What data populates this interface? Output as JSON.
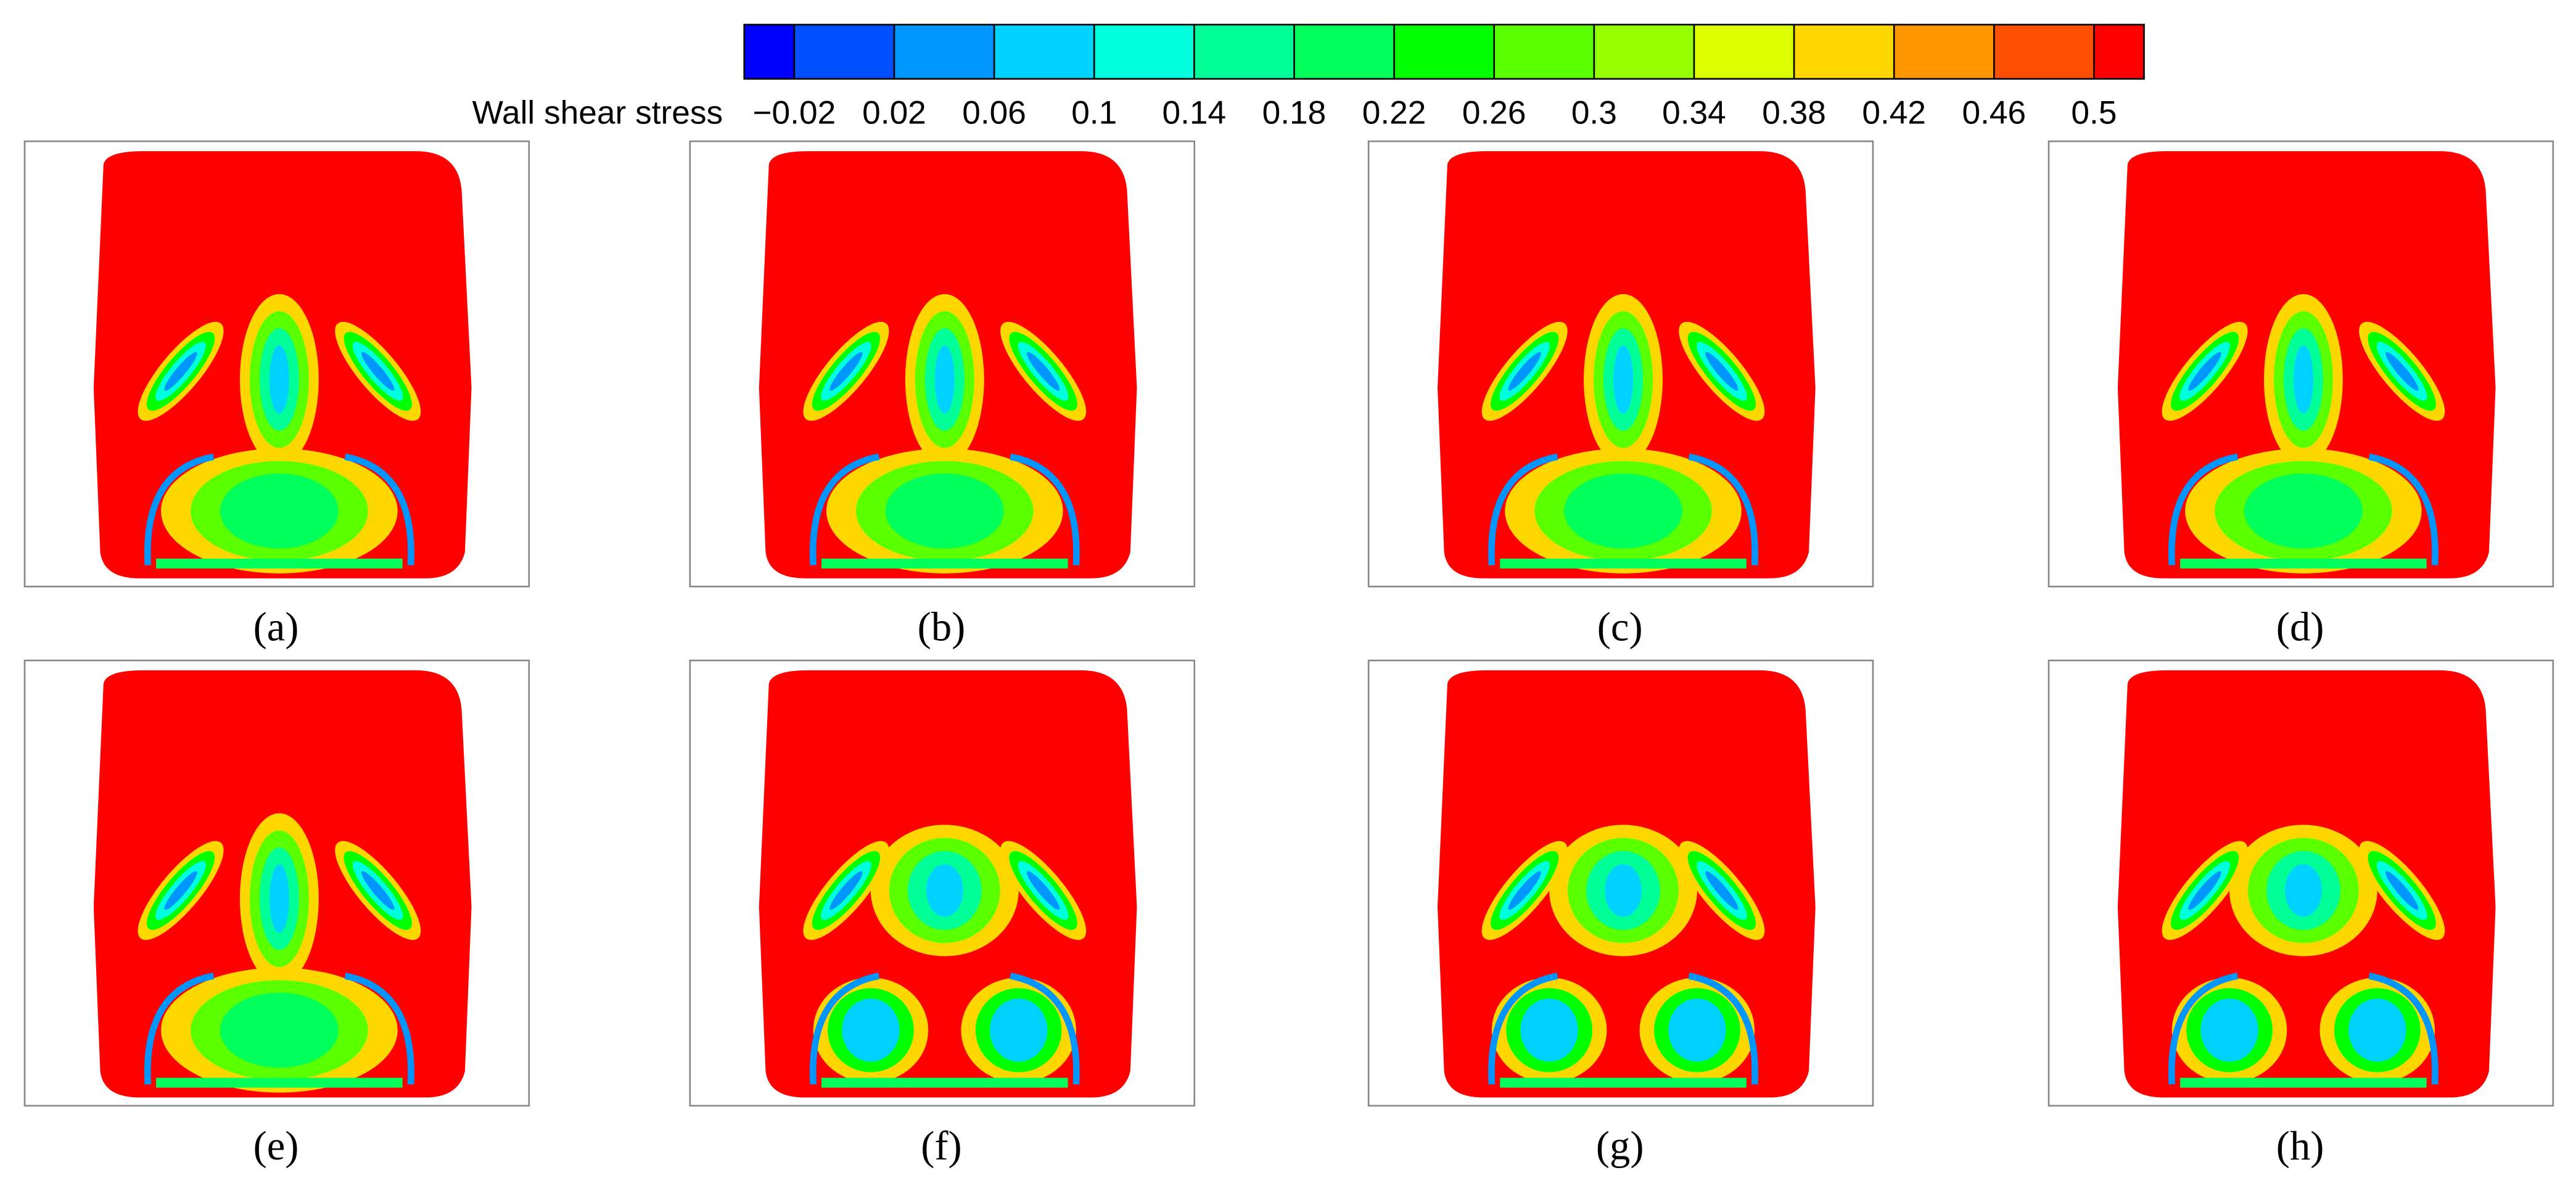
{
  "colorbar": {
    "label": "Wall shear stress",
    "lim": [
      -0.04,
      0.52
    ],
    "ticks": [
      {
        "value": -0.02,
        "label": "−0.02"
      },
      0.02,
      0.06,
      0.1,
      0.14,
      0.18,
      0.22,
      0.26,
      0.3,
      0.34,
      0.38,
      0.42,
      0.46,
      0.5
    ],
    "colors": [
      "#0000ff",
      "#0050ff",
      "#0096ff",
      "#00d2ff",
      "#00ffdc",
      "#00ff96",
      "#00ff5a",
      "#00ff00",
      "#5aff00",
      "#96ff00",
      "#dcff00",
      "#ffd700",
      "#ff9600",
      "#ff5000",
      "#ff0000"
    ]
  },
  "panels": [
    {
      "label": "(a)"
    },
    {
      "label": "(b)"
    },
    {
      "label": "(c)"
    },
    {
      "label": "(d)"
    },
    {
      "label": "(e)"
    },
    {
      "label": "(f)"
    },
    {
      "label": "(g)"
    },
    {
      "label": "(h)"
    }
  ]
}
